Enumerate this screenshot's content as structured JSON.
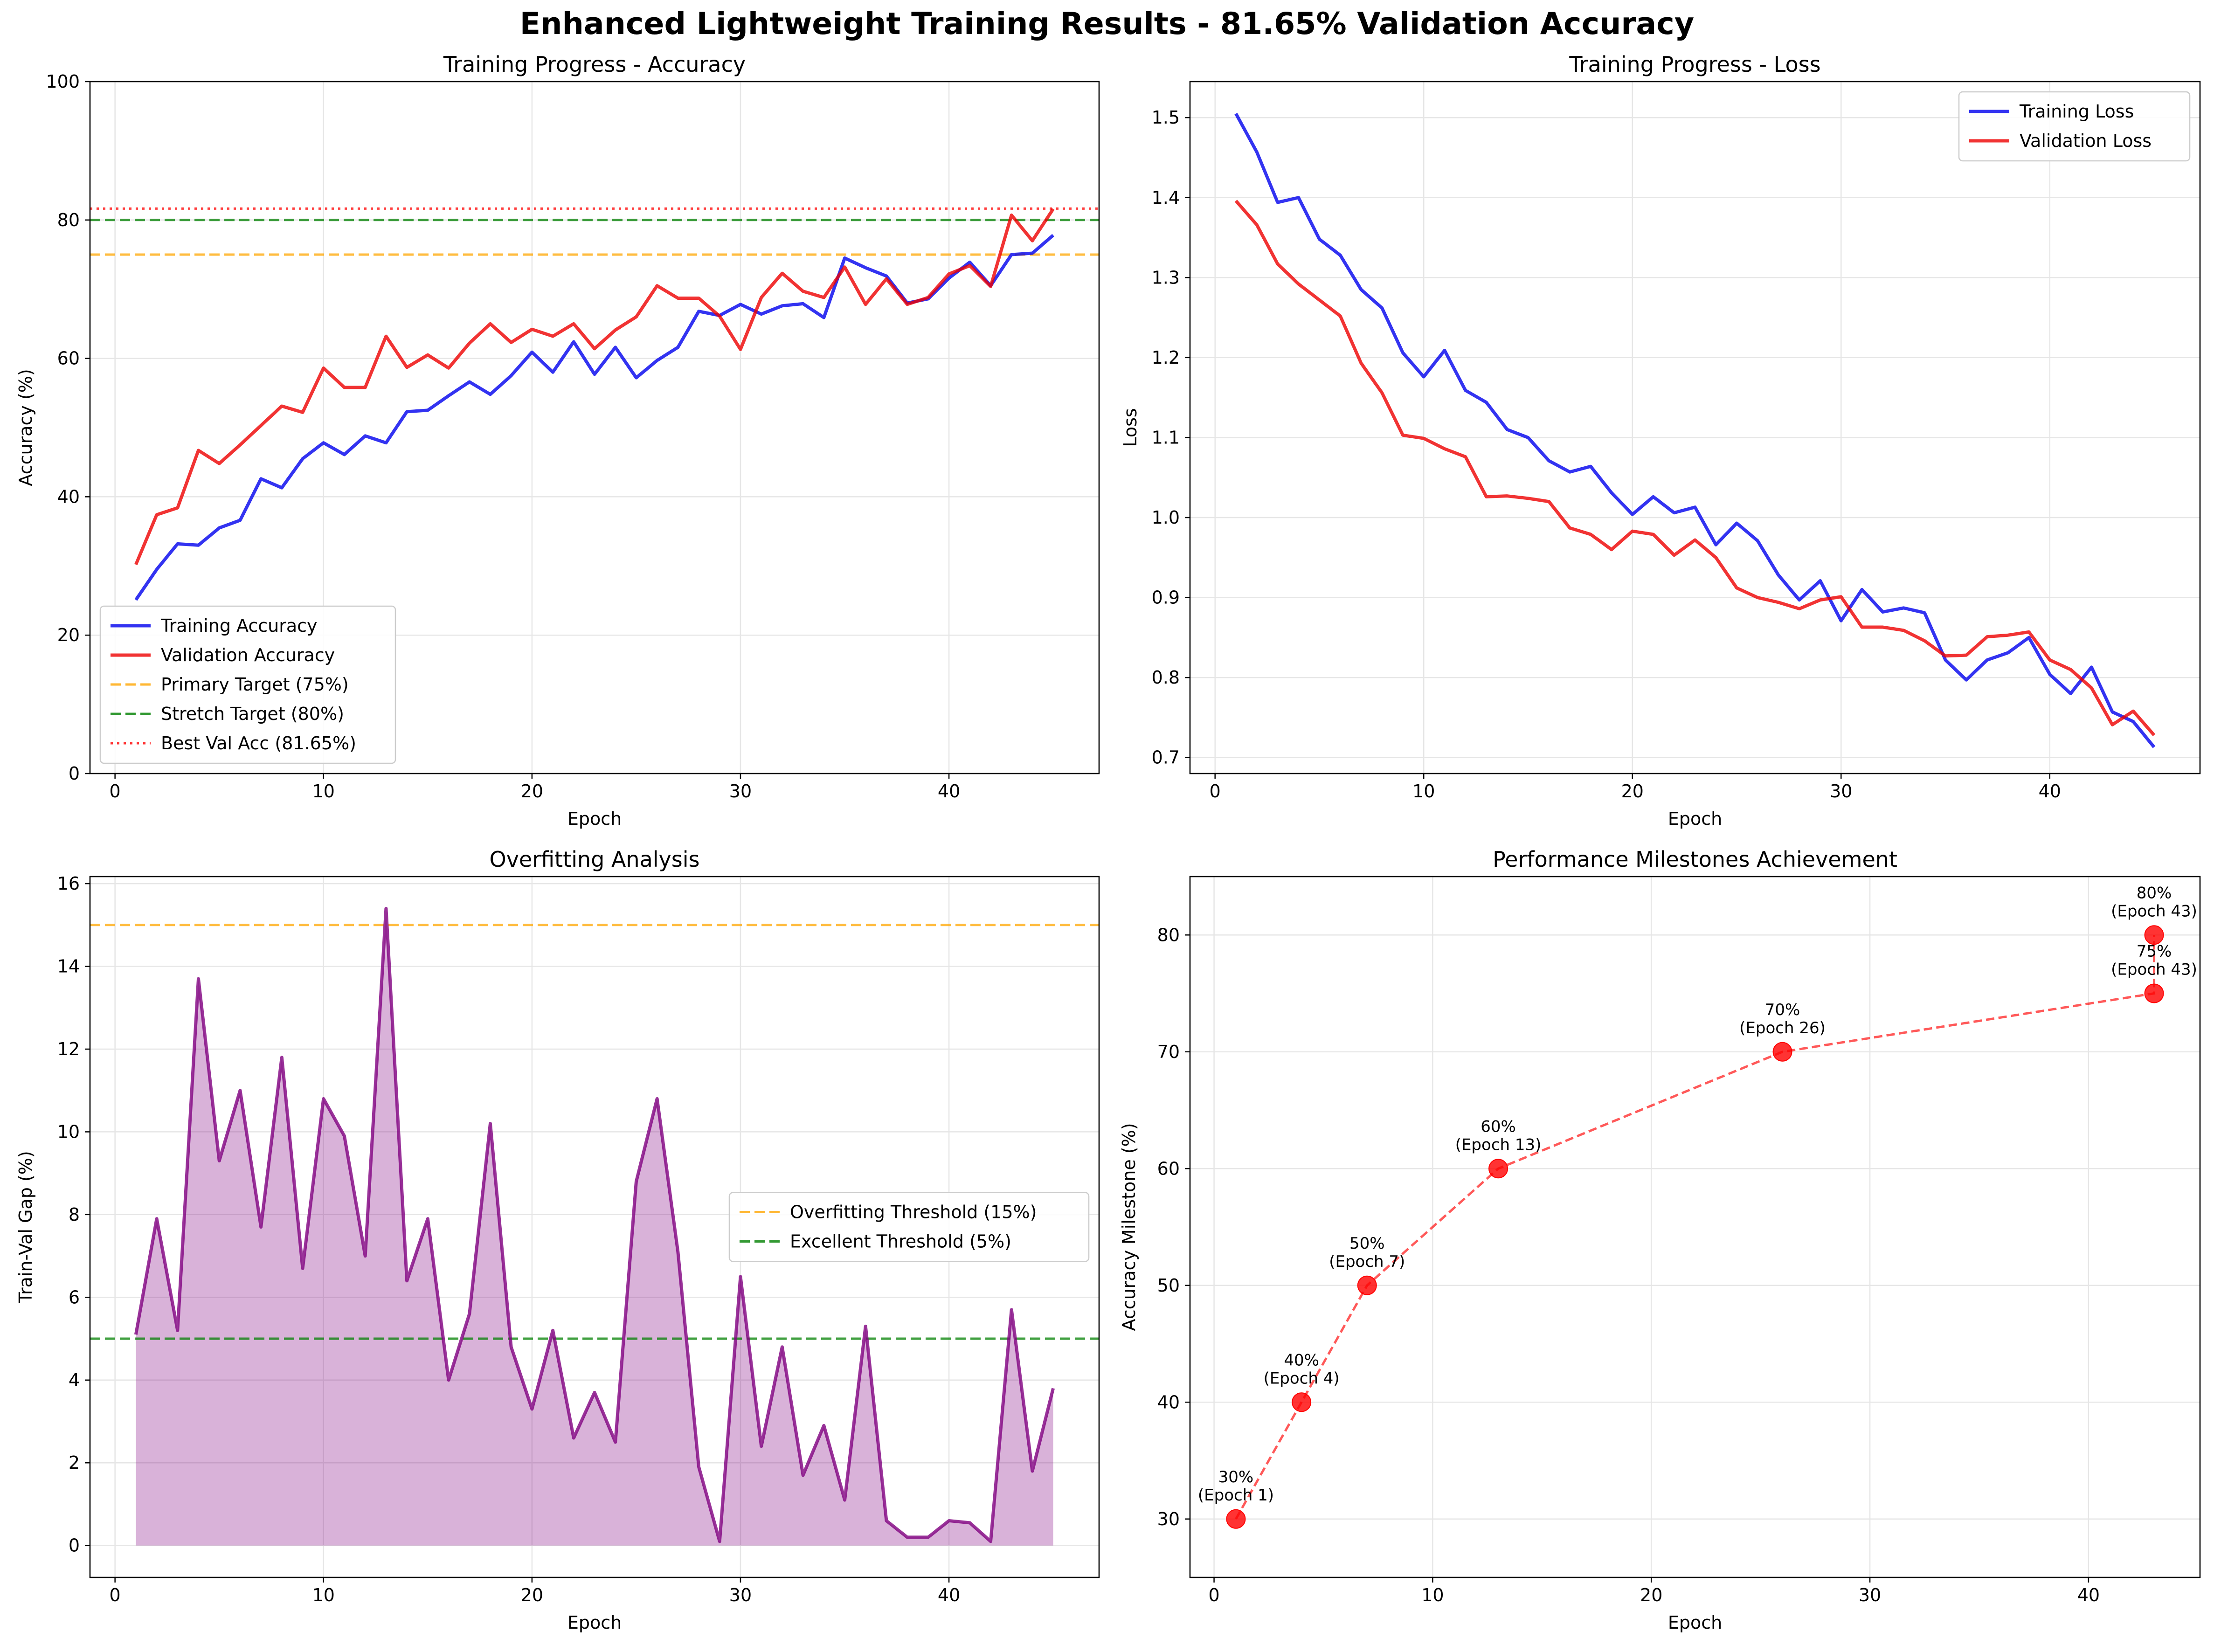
{
  "figure": {
    "title": "Enhanced Lightweight Training Results - 81.65% Validation Accuracy"
  },
  "chart_data": [
    {
      "type": "line",
      "title": "Training Progress - Accuracy",
      "xlabel": "Epoch",
      "ylabel": "Accuracy (%)",
      "xlim": [
        -1.2,
        47.2
      ],
      "ylim": [
        0,
        100
      ],
      "xticks": [
        0,
        10,
        20,
        30,
        40
      ],
      "yticks": [
        0,
        20,
        40,
        60,
        80,
        100
      ],
      "grid": true,
      "legend": "lower-left",
      "x": [
        1,
        2,
        3,
        4,
        5,
        6,
        7,
        8,
        9,
        10,
        11,
        12,
        13,
        14,
        15,
        16,
        17,
        18,
        19,
        20,
        21,
        22,
        23,
        24,
        25,
        26,
        27,
        28,
        29,
        30,
        31,
        32,
        33,
        34,
        35,
        36,
        37,
        38,
        39,
        40,
        41,
        42,
        43,
        44,
        45
      ],
      "series": [
        {
          "name": "Training Accuracy",
          "color": "#0000ee",
          "style": "solid",
          "values": [
            25.1,
            29.5,
            33.2,
            33.0,
            35.5,
            36.6,
            42.6,
            41.3,
            45.5,
            47.8,
            46.1,
            48.8,
            47.8,
            52.3,
            52.5,
            54.6,
            56.6,
            54.8,
            57.5,
            60.9,
            58.0,
            62.4,
            57.7,
            61.6,
            57.2,
            59.7,
            61.6,
            66.8,
            66.2,
            67.8,
            66.4,
            67.6,
            67.9,
            65.9,
            74.5,
            73.1,
            71.9,
            68.0,
            68.6,
            71.6,
            73.9,
            70.5,
            75.0,
            75.2,
            77.8
          ]
        },
        {
          "name": "Validation Accuracy",
          "color": "#ee0000",
          "style": "solid",
          "values": [
            30.2,
            37.4,
            38.4,
            46.7,
            44.8,
            47.5,
            50.3,
            53.1,
            52.2,
            58.6,
            55.8,
            55.8,
            63.2,
            58.7,
            60.5,
            58.6,
            62.2,
            65.0,
            62.3,
            64.2,
            63.2,
            65.0,
            61.4,
            64.1,
            66.0,
            70.5,
            68.7,
            68.7,
            66.1,
            61.3,
            68.8,
            72.3,
            69.7,
            68.8,
            73.2,
            67.8,
            71.5,
            67.8,
            68.8,
            72.2,
            73.4,
            70.4,
            80.7,
            77.0,
            81.6
          ]
        }
      ],
      "reference_lines": [
        {
          "name": "Primary Target (75%)",
          "y": 75,
          "color": "#ffa500",
          "style": "dashed"
        },
        {
          "name": "Stretch Target (80%)",
          "y": 80,
          "color": "#008000",
          "style": "dashed"
        },
        {
          "name": "Best Val Acc (81.65%)",
          "y": 81.65,
          "color": "#ff0000",
          "style": "dotted"
        }
      ]
    },
    {
      "type": "line",
      "title": "Training Progress - Loss",
      "xlabel": "Epoch",
      "ylabel": "Loss",
      "xlim": [
        -1.2,
        47.2
      ],
      "ylim": [
        0.68,
        1.545
      ],
      "xticks": [
        0,
        10,
        20,
        30,
        40
      ],
      "yticks": [
        0.7,
        0.8,
        0.9,
        1.0,
        1.1,
        1.2,
        1.3,
        1.4,
        1.5
      ],
      "grid": true,
      "legend": "top-right",
      "x": [
        1,
        2,
        3,
        4,
        5,
        6,
        7,
        8,
        9,
        10,
        11,
        12,
        13,
        14,
        15,
        16,
        17,
        18,
        19,
        20,
        21,
        22,
        23,
        24,
        25,
        26,
        27,
        28,
        29,
        30,
        31,
        32,
        33,
        34,
        35,
        36,
        37,
        38,
        39,
        40,
        41,
        42,
        43,
        44,
        45
      ],
      "series": [
        {
          "name": "Training Loss",
          "color": "#0000ee",
          "style": "solid",
          "values": [
            1.505,
            1.457,
            1.394,
            1.4,
            1.348,
            1.328,
            1.285,
            1.262,
            1.206,
            1.176,
            1.209,
            1.159,
            1.144,
            1.11,
            1.1,
            1.071,
            1.057,
            1.064,
            1.031,
            1.004,
            1.026,
            1.006,
            1.013,
            0.966,
            0.993,
            0.971,
            0.928,
            0.897,
            0.921,
            0.871,
            0.91,
            0.882,
            0.887,
            0.881,
            0.822,
            0.797,
            0.822,
            0.831,
            0.85,
            0.804,
            0.78,
            0.813,
            0.757,
            0.745,
            0.713
          ]
        },
        {
          "name": "Validation Loss",
          "color": "#ee0000",
          "style": "solid",
          "values": [
            1.396,
            1.366,
            1.317,
            1.292,
            1.272,
            1.252,
            1.193,
            1.156,
            1.103,
            1.099,
            1.086,
            1.076,
            1.026,
            1.027,
            1.024,
            1.02,
            0.987,
            0.979,
            0.96,
            0.983,
            0.979,
            0.953,
            0.972,
            0.95,
            0.912,
            0.9,
            0.894,
            0.886,
            0.897,
            0.901,
            0.863,
            0.863,
            0.859,
            0.846,
            0.827,
            0.828,
            0.851,
            0.853,
            0.857,
            0.822,
            0.81,
            0.787,
            0.741,
            0.758,
            0.728
          ]
        }
      ]
    },
    {
      "type": "area",
      "title": "Overfitting Analysis",
      "xlabel": "Epoch",
      "ylabel": "Train-Val Gap (%)",
      "xlim": [
        -1.2,
        47.2
      ],
      "ylim": [
        -0.77,
        16.17
      ],
      "xticks": [
        0,
        10,
        20,
        30,
        40
      ],
      "yticks": [
        0,
        2,
        4,
        6,
        8,
        10,
        12,
        14,
        16
      ],
      "grid": true,
      "legend": "center-right",
      "x": [
        1,
        2,
        3,
        4,
        5,
        6,
        7,
        8,
        9,
        10,
        11,
        12,
        13,
        14,
        15,
        16,
        17,
        18,
        19,
        20,
        21,
        22,
        23,
        24,
        25,
        26,
        27,
        28,
        29,
        30,
        31,
        32,
        33,
        34,
        35,
        36,
        37,
        38,
        39,
        40,
        41,
        42,
        43,
        44,
        45
      ],
      "series": [
        {
          "name": "",
          "color": "#800080",
          "fill": "#800080",
          "style": "solid",
          "values": [
            5.1,
            7.9,
            5.2,
            13.7,
            9.3,
            11.0,
            7.7,
            11.8,
            6.7,
            10.8,
            9.9,
            7.0,
            15.4,
            6.4,
            7.9,
            4.0,
            5.6,
            10.2,
            4.8,
            3.3,
            5.2,
            2.6,
            3.7,
            2.5,
            8.8,
            10.8,
            7.1,
            1.9,
            0.1,
            6.5,
            2.4,
            4.8,
            1.7,
            2.9,
            1.1,
            5.3,
            0.6,
            0.2,
            0.2,
            0.6,
            0.55,
            0.1,
            5.7,
            1.8,
            3.8
          ]
        }
      ],
      "reference_lines": [
        {
          "name": "Overfitting Threshold (15%)",
          "y": 15,
          "color": "#ffa500",
          "style": "dashed"
        },
        {
          "name": "Excellent Threshold (5%)",
          "y": 5,
          "color": "#008000",
          "style": "dashed"
        }
      ]
    },
    {
      "type": "scatter",
      "title": "Performance Milestones Achievement",
      "xlabel": "Epoch",
      "ylabel": "Accuracy Milestone (%)",
      "xlim": [
        -1.1,
        45.1
      ],
      "ylim": [
        25,
        85
      ],
      "xticks": [
        0,
        10,
        20,
        30,
        40
      ],
      "yticks": [
        30,
        40,
        50,
        60,
        70,
        80
      ],
      "grid": true,
      "color": "#ff0000",
      "points": [
        {
          "x": 1,
          "y": 30,
          "label": "30%",
          "sublabel": "(Epoch 1)"
        },
        {
          "x": 4,
          "y": 40,
          "label": "40%",
          "sublabel": "(Epoch 4)"
        },
        {
          "x": 7,
          "y": 50,
          "label": "50%",
          "sublabel": "(Epoch 7)"
        },
        {
          "x": 13,
          "y": 60,
          "label": "60%",
          "sublabel": "(Epoch 13)"
        },
        {
          "x": 26,
          "y": 70,
          "label": "70%",
          "sublabel": "(Epoch 26)"
        },
        {
          "x": 43,
          "y": 75,
          "label": "75%",
          "sublabel": "(Epoch 43)"
        },
        {
          "x": 43,
          "y": 80,
          "label": "80%",
          "sublabel": "(Epoch 43)"
        }
      ]
    }
  ]
}
